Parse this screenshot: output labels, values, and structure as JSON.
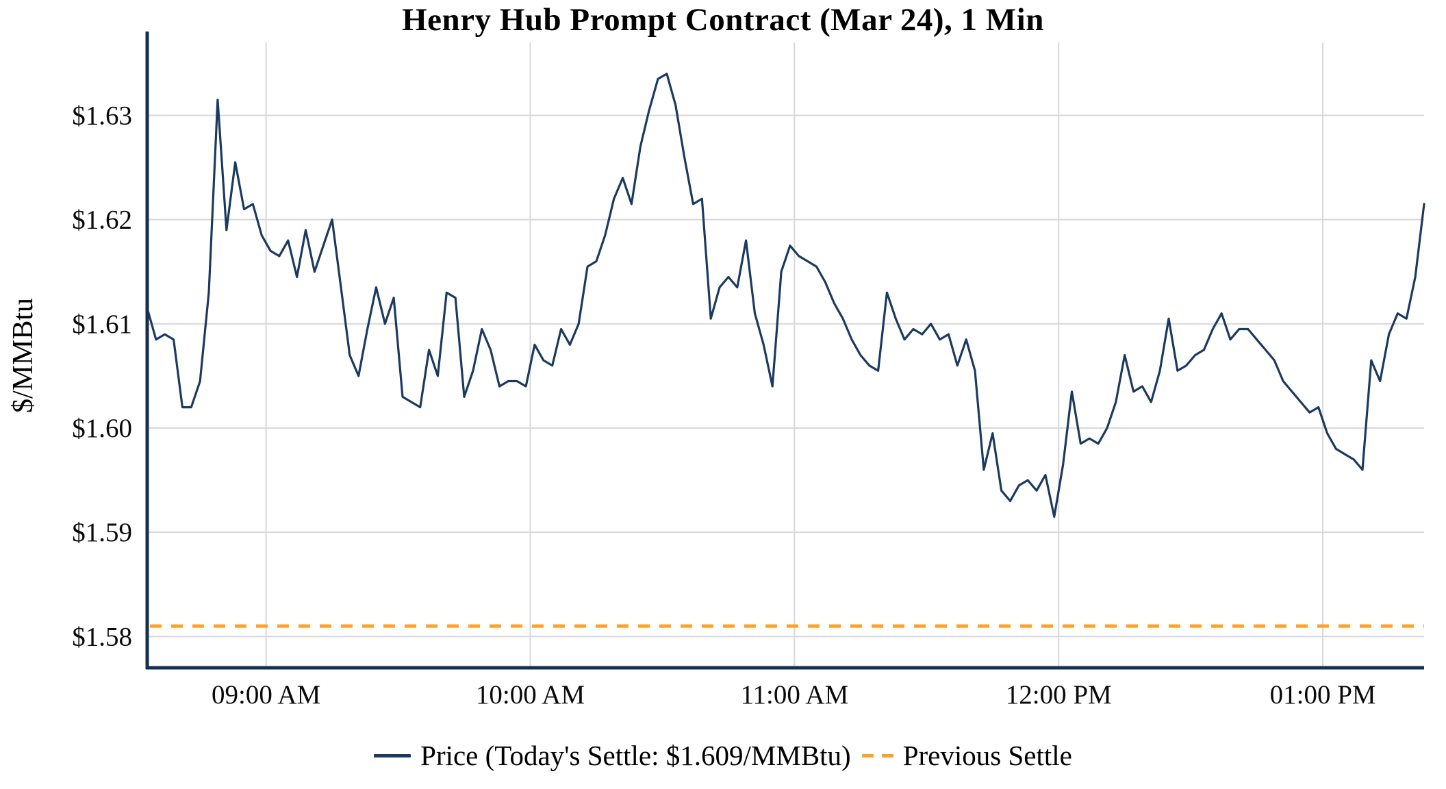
{
  "figure": {
    "title": "Henry Hub Prompt Contract (Mar 24), 1 Min",
    "ylabel": "$/MMBtu"
  },
  "legend": {
    "price_label": "Price (Today's Settle: $1.609/MMBtu)",
    "settle_label": "Previous Settle"
  },
  "colors": {
    "price_line": "#1b3a5f",
    "previous_settle": "#ffa128",
    "grid": "#d8d8d8",
    "axis": "#15304e"
  },
  "chart_data": {
    "type": "line",
    "title": "Henry Hub Prompt Contract (Mar 24), 1 Min",
    "xlabel": "",
    "ylabel": "$/MMBtu",
    "grid": true,
    "legend_position": "bottom",
    "todays_settle": 1.609,
    "x_axis": {
      "unit": "minutes_since_midnight",
      "range": [
        513,
        803
      ],
      "ticks": [
        {
          "minute": 540,
          "label": "09:00 AM"
        },
        {
          "minute": 600,
          "label": "10:00 AM"
        },
        {
          "minute": 660,
          "label": "11:00 AM"
        },
        {
          "minute": 720,
          "label": "12:00 PM"
        },
        {
          "minute": 780,
          "label": "01:00 PM"
        }
      ]
    },
    "y_axis": {
      "range": [
        1.577,
        1.637
      ],
      "ticks": [
        {
          "value": 1.58,
          "label": "$1.58"
        },
        {
          "value": 1.59,
          "label": "$1.59"
        },
        {
          "value": 1.6,
          "label": "$1.60"
        },
        {
          "value": 1.61,
          "label": "$1.61"
        },
        {
          "value": 1.62,
          "label": "$1.62"
        },
        {
          "value": 1.63,
          "label": "$1.63"
        }
      ]
    },
    "series": [
      {
        "name": "Price",
        "type": "line",
        "color": "#1b3a5f",
        "start_minute": 513,
        "step_minutes": 2,
        "values": [
          1.6115,
          1.6085,
          1.609,
          1.6085,
          1.602,
          1.602,
          1.6045,
          1.613,
          1.6315,
          1.619,
          1.6255,
          1.621,
          1.6215,
          1.6185,
          1.617,
          1.6165,
          1.618,
          1.6145,
          1.619,
          1.615,
          1.6175,
          1.62,
          1.6135,
          1.607,
          1.605,
          1.6095,
          1.6135,
          1.61,
          1.6125,
          1.603,
          1.6025,
          1.602,
          1.6075,
          1.605,
          1.613,
          1.6125,
          1.603,
          1.6055,
          1.6095,
          1.6075,
          1.604,
          1.6045,
          1.6045,
          1.604,
          1.608,
          1.6065,
          1.606,
          1.6095,
          1.608,
          1.61,
          1.6155,
          1.616,
          1.6185,
          1.622,
          1.624,
          1.6215,
          1.627,
          1.6305,
          1.6335,
          1.634,
          1.631,
          1.626,
          1.6215,
          1.622,
          1.6105,
          1.6135,
          1.6145,
          1.6135,
          1.618,
          1.611,
          1.608,
          1.604,
          1.615,
          1.6175,
          1.6165,
          1.616,
          1.6155,
          1.614,
          1.612,
          1.6105,
          1.6085,
          1.607,
          1.606,
          1.6055,
          1.613,
          1.6105,
          1.6085,
          1.6095,
          1.609,
          1.61,
          1.6085,
          1.609,
          1.606,
          1.6085,
          1.6055,
          1.596,
          1.5995,
          1.594,
          1.593,
          1.5945,
          1.595,
          1.594,
          1.5955,
          1.5915,
          1.5965,
          1.6035,
          1.5985,
          1.599,
          1.5985,
          1.6,
          1.6025,
          1.607,
          1.6035,
          1.604,
          1.6025,
          1.6055,
          1.6105,
          1.6055,
          1.606,
          1.607,
          1.6075,
          1.6095,
          1.611,
          1.6085,
          1.6095,
          1.6095,
          1.6085,
          1.6075,
          1.6065,
          1.6045,
          1.6035,
          1.6025,
          1.6015,
          1.602,
          1.5995,
          1.598,
          1.5975,
          1.597,
          1.596,
          1.6065,
          1.6045,
          1.609,
          1.611,
          1.6105,
          1.6145,
          1.6215
        ]
      },
      {
        "name": "Previous Settle",
        "type": "hline",
        "style": "dashed",
        "color": "#ffa128",
        "value": 1.581
      }
    ]
  }
}
